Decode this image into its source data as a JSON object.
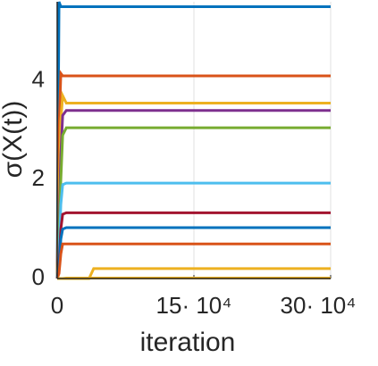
{
  "chart_data": {
    "type": "line",
    "xlabel": "iteration",
    "ylabel": "σ(X(t))",
    "x": [
      0,
      2000,
      4000,
      6000,
      10000,
      35000,
      40000,
      300000
    ],
    "series": [
      {
        "color": "#0072BD",
        "values": [
          0,
          5.6,
          5.5,
          5.5,
          5.5,
          5.5,
          5.5,
          5.5
        ]
      },
      {
        "color": "#D95319",
        "values": [
          0,
          3,
          4.15,
          4.1,
          4.1,
          4.1,
          4.1,
          4.1
        ]
      },
      {
        "color": "#EDB120",
        "values": [
          0,
          1.5,
          3.2,
          3.7,
          3.55,
          3.55,
          3.55,
          3.55
        ]
      },
      {
        "color": "#7E2F8E",
        "values": [
          0,
          1,
          2.5,
          3.3,
          3.4,
          3.4,
          3.4,
          3.4
        ]
      },
      {
        "color": "#77AC30",
        "values": [
          0,
          0.8,
          2,
          2.9,
          3.05,
          3.05,
          3.05,
          3.05
        ]
      },
      {
        "color": "#4DBEEE",
        "values": [
          0,
          0.5,
          1.5,
          1.9,
          1.93,
          1.93,
          1.93,
          1.93
        ]
      },
      {
        "color": "#A2142F",
        "values": [
          0,
          0.3,
          1,
          1.3,
          1.33,
          1.33,
          1.33,
          1.33
        ]
      },
      {
        "color": "#0072BD",
        "values": [
          0,
          0.2,
          0.8,
          1,
          1.03,
          1.03,
          1.03,
          1.03
        ]
      },
      {
        "color": "#D95319",
        "values": [
          0,
          0.1,
          0.5,
          0.7,
          0.7,
          0.7,
          0.7,
          0.7
        ]
      },
      {
        "color": "#EDB120",
        "values": [
          0,
          0,
          0,
          0,
          0,
          0,
          0.2,
          0.2
        ]
      },
      {
        "color": "#EDB120",
        "values": [
          0,
          0,
          0,
          0,
          0.01,
          0.01,
          0.01,
          0.01
        ]
      }
    ],
    "xlim": [
      0,
      300000
    ],
    "ylim": [
      0,
      5.6
    ],
    "xticks": [
      0,
      {
        "value": 150000,
        "label": "15· 10⁴"
      },
      {
        "value": 300000,
        "label": "30· 10⁴"
      }
    ],
    "yticks": [
      0,
      2,
      4
    ],
    "grid": true
  }
}
